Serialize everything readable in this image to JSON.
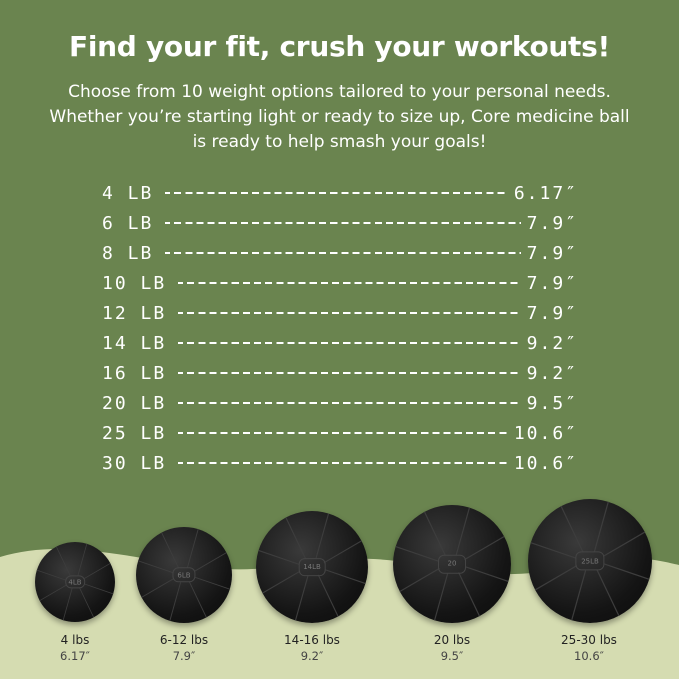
{
  "colors": {
    "background": "#6a844f",
    "wave": "#d5dcb1",
    "text": "#ffffff"
  },
  "header": {
    "title": "Find your fit, crush your workouts!",
    "subtitle": "Choose from 10 weight options tailored to your personal needs. Whether you’re starting light or ready to size up, Core medicine ball is ready to help smash your goals!"
  },
  "size_table": [
    {
      "weight": "4 LB",
      "diameter": "6.17″"
    },
    {
      "weight": "6 LB",
      "diameter": "7.9″"
    },
    {
      "weight": "8 LB",
      "diameter": "7.9″"
    },
    {
      "weight": "10 LB",
      "diameter": "7.9″"
    },
    {
      "weight": "12 LB",
      "diameter": "7.9″"
    },
    {
      "weight": "14 LB",
      "diameter": "9.2″"
    },
    {
      "weight": "16 LB",
      "diameter": "9.2″"
    },
    {
      "weight": "20 LB",
      "diameter": "9.5″"
    },
    {
      "weight": "25 LB",
      "diameter": "10.6″"
    },
    {
      "weight": "30 LB",
      "diameter": "10.6″"
    }
  ],
  "balls": [
    {
      "label": "4 lbs",
      "size": "6.17″",
      "tag": "4LB"
    },
    {
      "label": "6-12 lbs",
      "size": "7.9″",
      "tag": "6LB"
    },
    {
      "label": "14-16 lbs",
      "size": "9.2″",
      "tag": "14LB"
    },
    {
      "label": "20 lbs",
      "size": "9.5″",
      "tag": "20"
    },
    {
      "label": "25-30 lbs",
      "size": "10.6″",
      "tag": "25LB"
    }
  ]
}
